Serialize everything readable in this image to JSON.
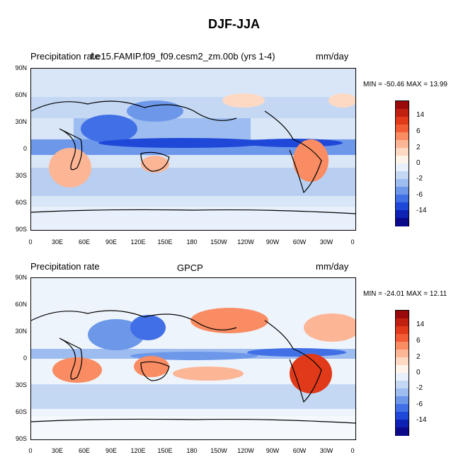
{
  "figure": {
    "title": "DJF-JJA",
    "units": "mm/day"
  },
  "panels": [
    {
      "left_label": "Precipitation rate",
      "center_label": "f.e15.FAMIP.f09_f09.cesm2_zm.00b (yrs 1-4)",
      "right_label": "mm/day",
      "minmax": "MIN = -50.46 MAX =  13.99"
    },
    {
      "left_label": "Precipitation rate",
      "center_label": "GPCP",
      "right_label": "mm/day",
      "minmax": "MIN = -24.01 MAX =  12.11"
    }
  ],
  "axes": {
    "lat_ticks": [
      "90N",
      "60N",
      "30N",
      "0",
      "30S",
      "60S",
      "90S"
    ],
    "lon_ticks": [
      "0",
      "30E",
      "60E",
      "90E",
      "120E",
      "150E",
      "180",
      "150W",
      "120W",
      "90W",
      "60W",
      "30W",
      "0"
    ]
  },
  "colorbar": {
    "labels": [
      "14",
      "6",
      "2",
      "0",
      "-2",
      "-6",
      "-14"
    ],
    "colors": [
      "#9b0a0a",
      "#c0200f",
      "#e03a1a",
      "#f25d35",
      "#f98c63",
      "#fcb595",
      "#fdd9c3",
      "#fff4ea",
      "#e8f0fb",
      "#c4d8f4",
      "#9dbcef",
      "#6d98ea",
      "#4170e6",
      "#1f48d8",
      "#0d22b4",
      "#0a0a8a"
    ]
  },
  "colors": {
    "ocean_base_panel1": "#d6e4f7",
    "ocean_base_panel2": "#eef4fb",
    "coast": "#000000"
  }
}
